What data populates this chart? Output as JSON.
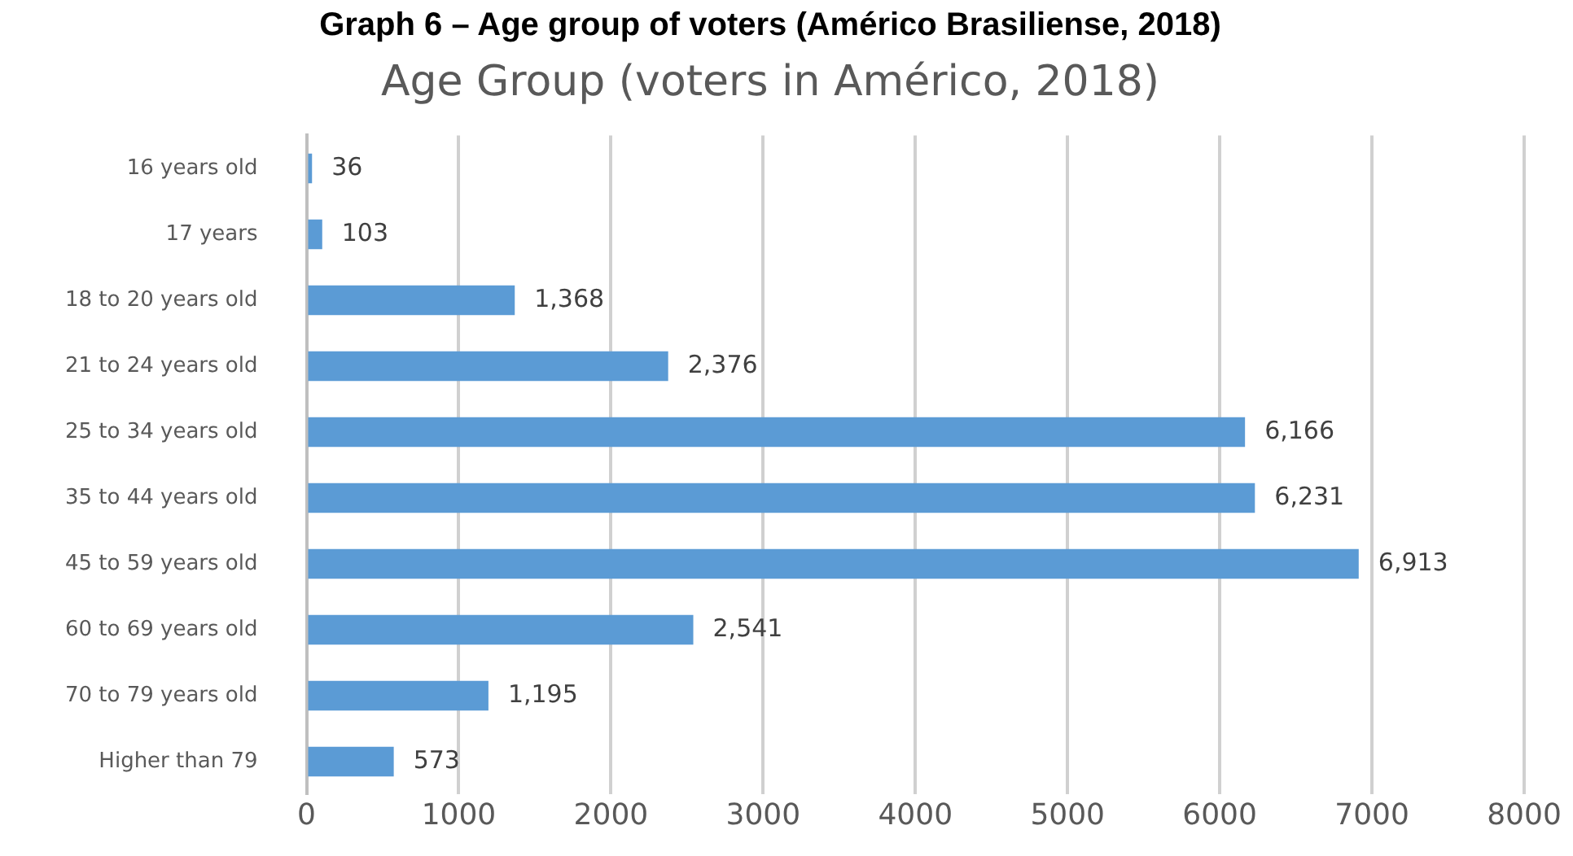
{
  "chart_data": {
    "type": "bar",
    "orientation": "horizontal",
    "title": "Graph 6 – Age group of voters (Américo Brasiliense, 2018)",
    "subtitle": "Age Group (voters in Américo, 2018)",
    "categories": [
      "16 years old",
      "17 years",
      "18 to 20 years old",
      "21 to 24 years old",
      "25 to 34 years old",
      "35 to 44 years old",
      "45 to 59 years old",
      "60 to 69 years old",
      "70 to 79 years old",
      "Higher than 79"
    ],
    "values": [
      36,
      103,
      1368,
      2376,
      6166,
      6231,
      6913,
      2541,
      1195,
      573
    ],
    "value_labels": [
      "36",
      "103",
      "1,368",
      "2,376",
      "6,166",
      "6,231",
      "6,913",
      "2,541",
      "1,195",
      "573"
    ],
    "color": "#5b9bd5",
    "xlim": [
      0,
      8000
    ],
    "xticks": [
      0,
      1000,
      2000,
      3000,
      4000,
      5000,
      6000,
      7000,
      8000
    ],
    "grid": "x",
    "legend": false
  }
}
